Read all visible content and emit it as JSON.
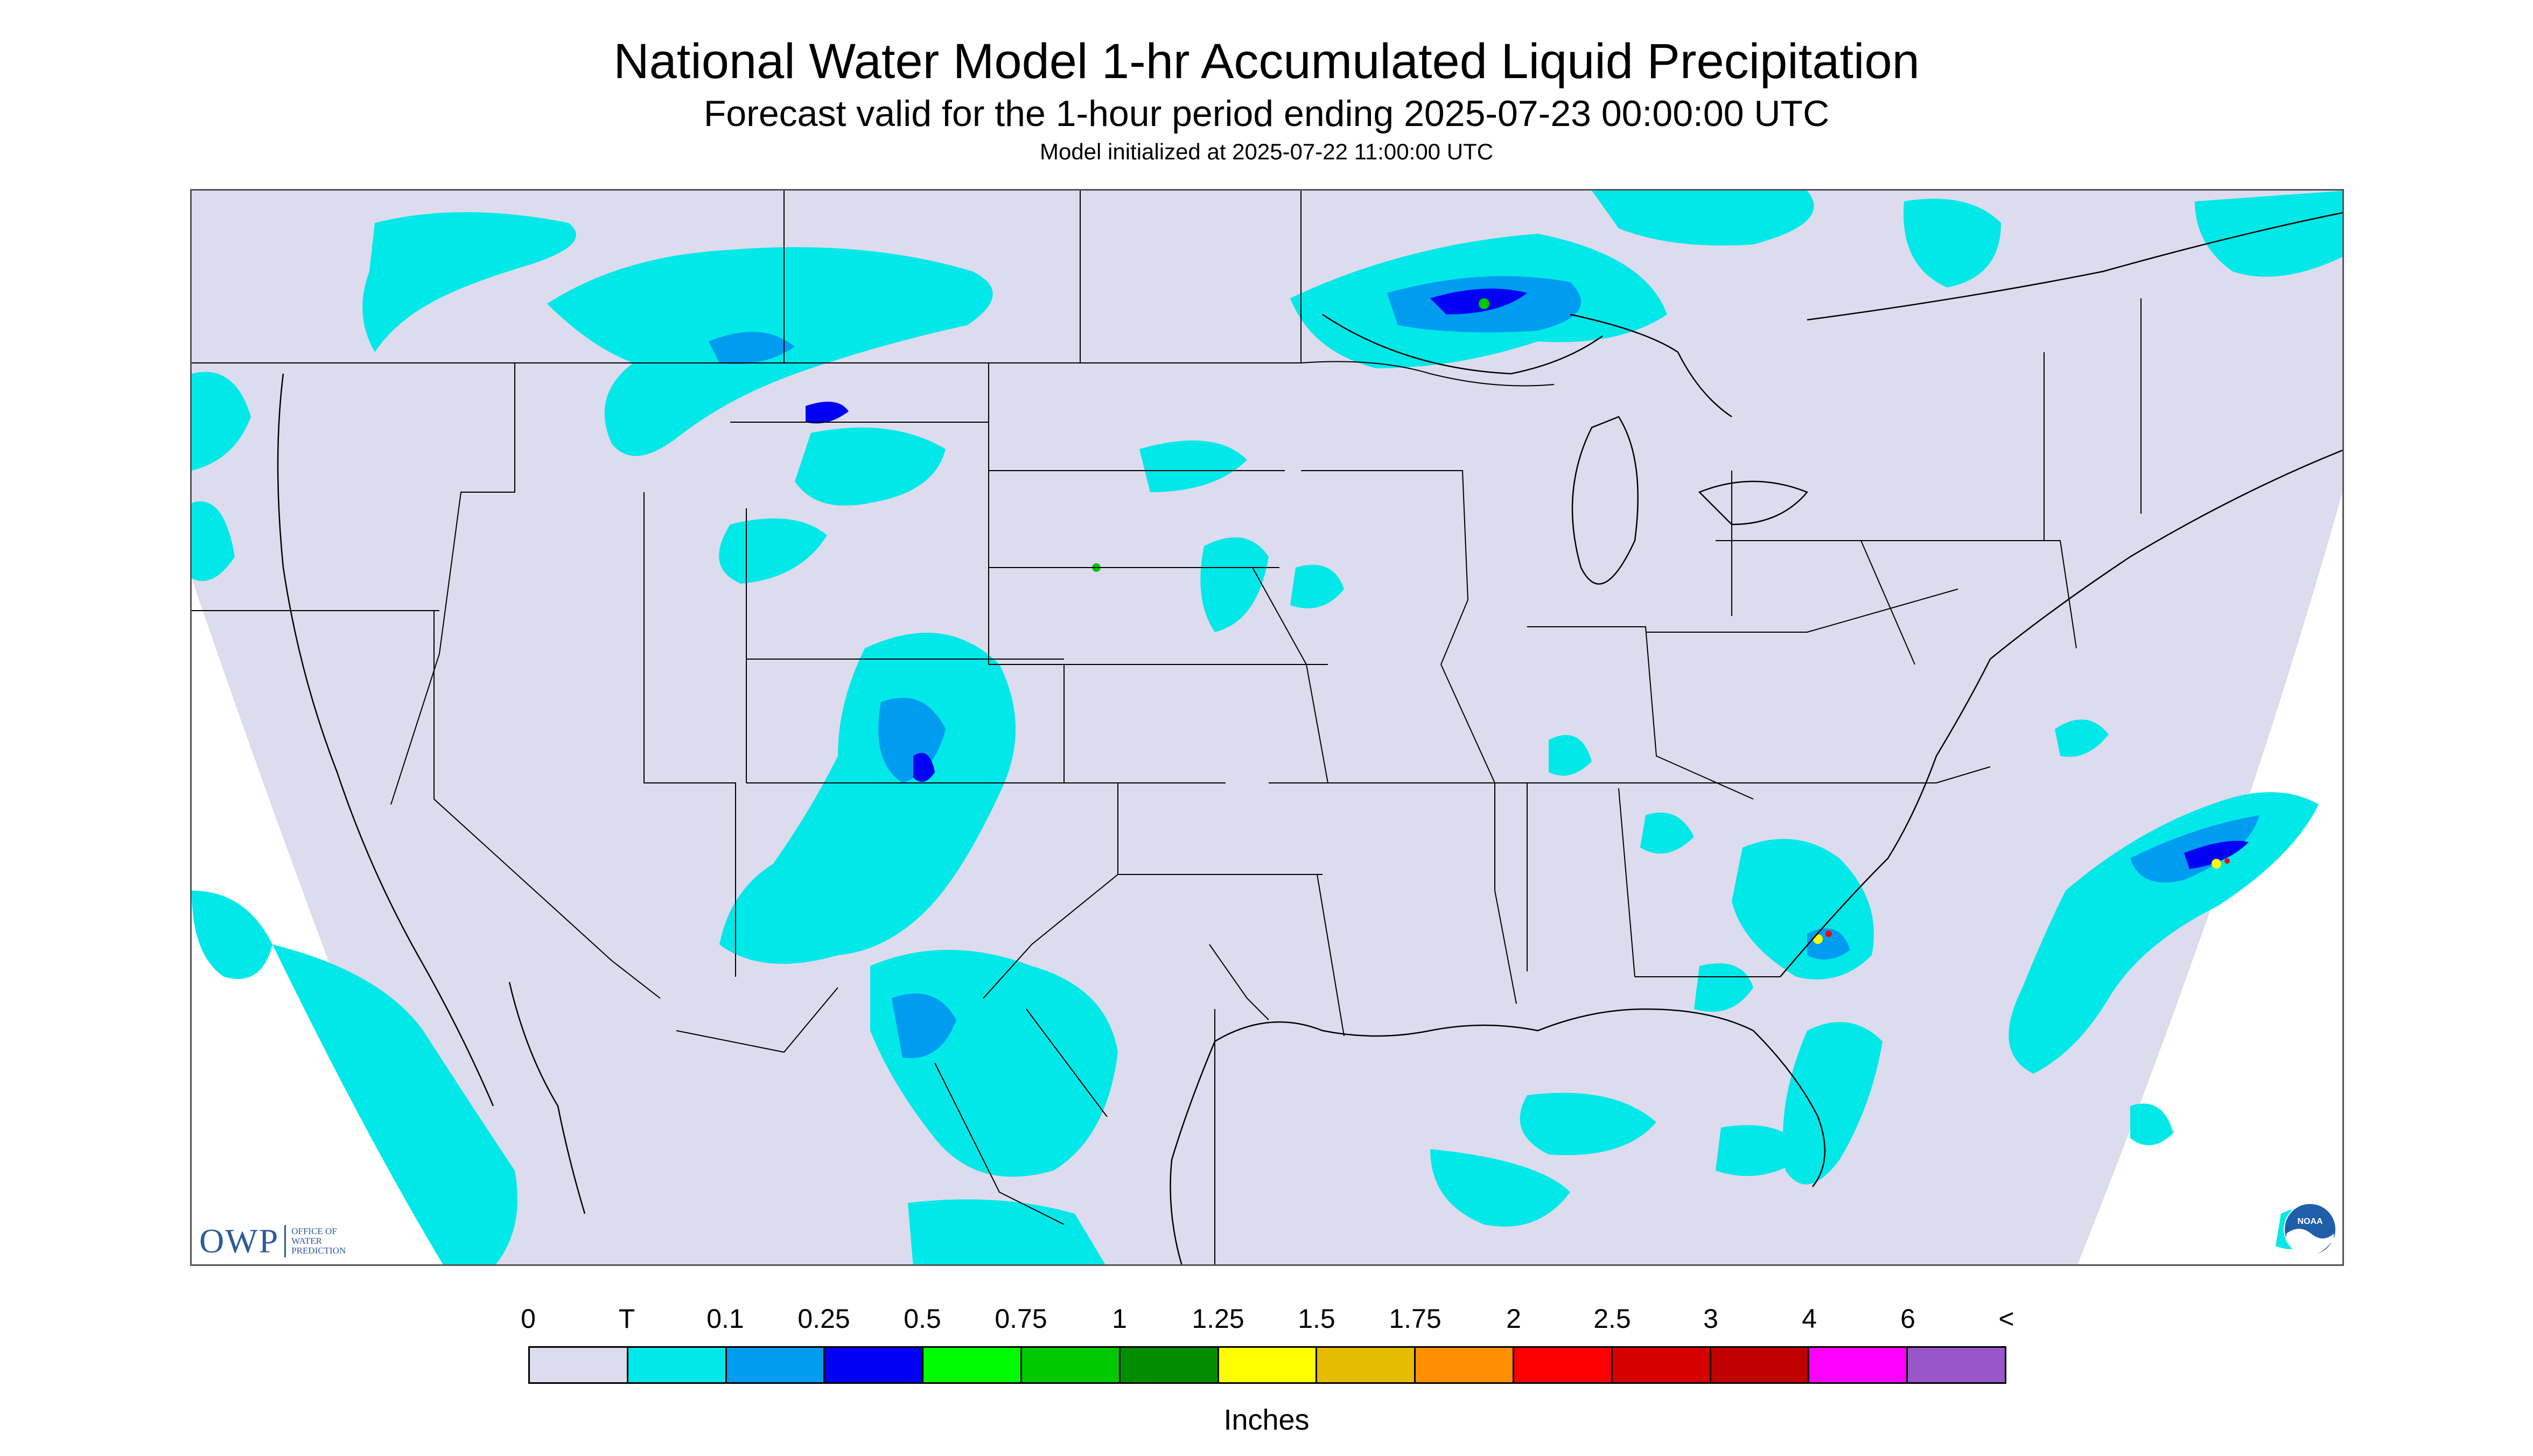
{
  "header": {
    "title": "National Water Model 1-hr Accumulated Liquid Precipitation",
    "subtitle": "Forecast valid for the 1-hour period ending 2025-07-23 00:00:00 UTC",
    "init": "Model initialized at 2025-07-22 11:00:00 UTC"
  },
  "logos": {
    "owp_mark": "OWP",
    "owp_text": "OFFICE OF WATER PREDICTION",
    "noaa_text": "NOAA"
  },
  "legend": {
    "labels": [
      "0",
      "T",
      "0.1",
      "0.25",
      "0.5",
      "0.75",
      "1",
      "1.25",
      "1.5",
      "1.75",
      "2",
      "2.5",
      "3",
      "4",
      "6",
      "<"
    ],
    "colors": [
      "#dcdcee",
      "#00e8e8",
      "#009cf0",
      "#0000f4",
      "#00fa00",
      "#00c800",
      "#008e00",
      "#ffff00",
      "#e6bc00",
      "#ff8e00",
      "#ff0000",
      "#d60000",
      "#c00000",
      "#ff00ff",
      "#9955c9"
    ],
    "units": "Inches"
  },
  "map": {
    "colors": {
      "background": "#dcdcee",
      "outside": "#ffffff",
      "trace": "#00e8e8",
      "light": "#009cf0",
      "moderate": "#0000f4",
      "heavy_green": "#00c800",
      "heavy_yellow": "#ffff00",
      "heavy_red": "#ff0000",
      "border": "#000000"
    }
  }
}
